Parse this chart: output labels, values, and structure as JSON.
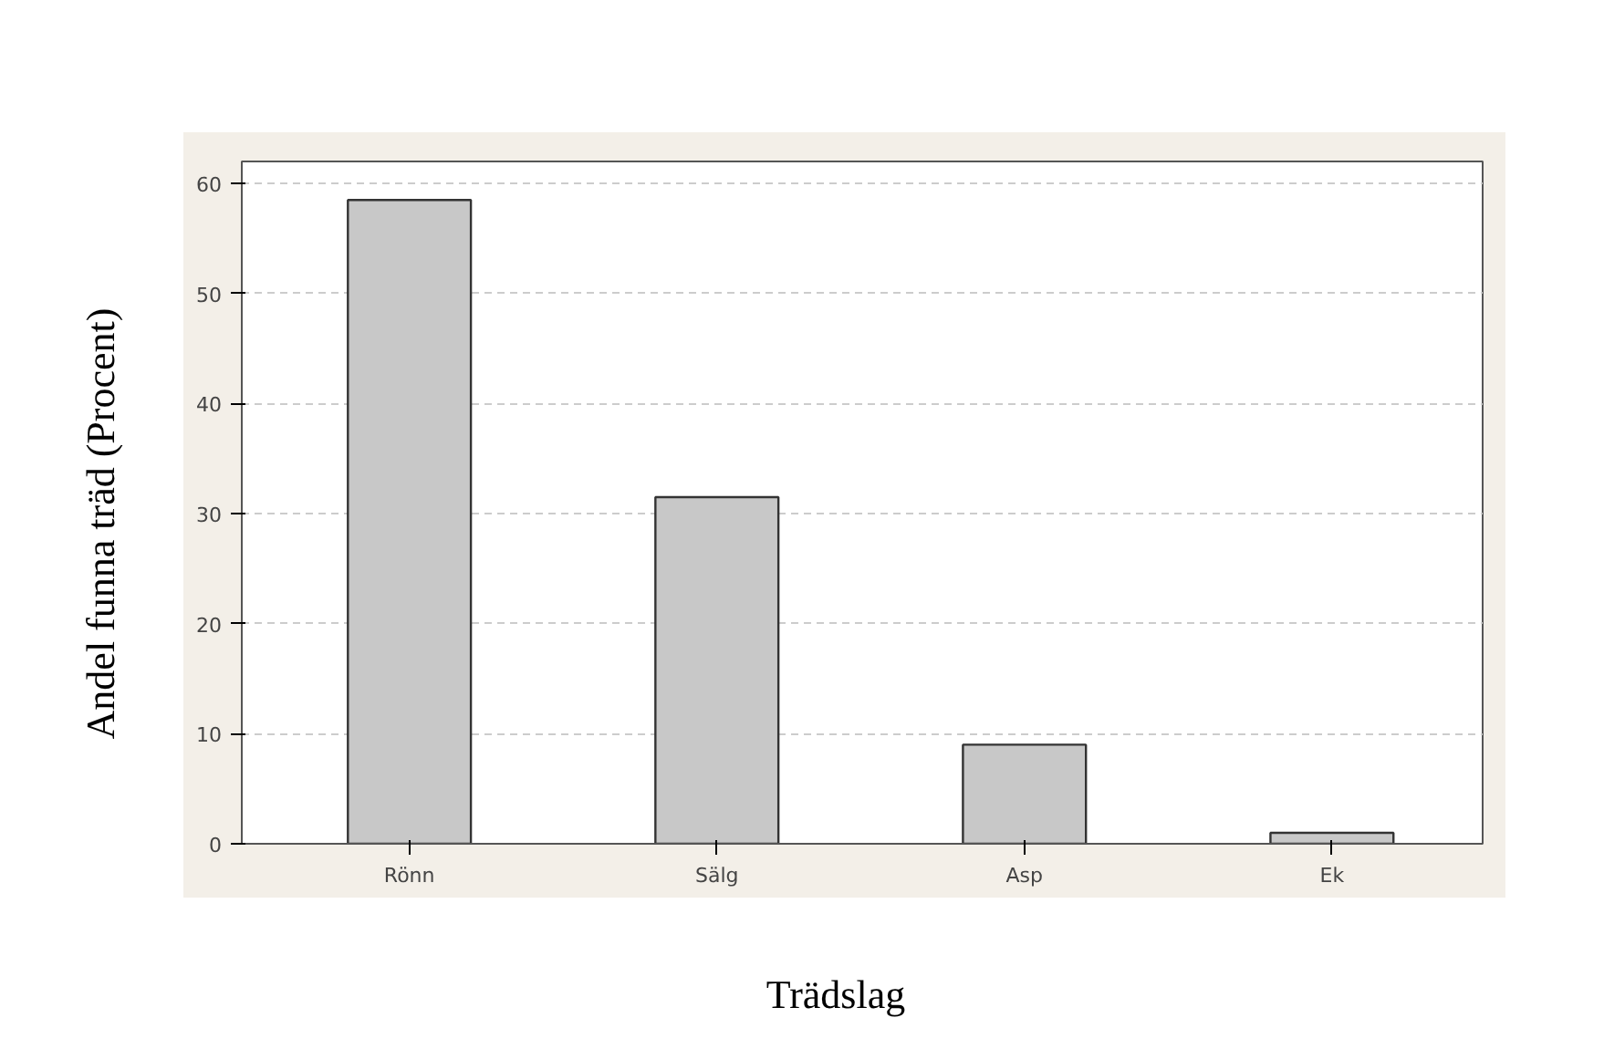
{
  "chart_data": {
    "type": "bar",
    "xlabel": "Trädslag",
    "ylabel": "Andel funna träd (Procent)",
    "categories": [
      "Rönn",
      "Sälg",
      "Asp",
      "Ek"
    ],
    "values": [
      58.5,
      31.5,
      9,
      1
    ],
    "color": "#c8c8c8",
    "ylim": [
      0,
      62
    ],
    "yticks": [
      0,
      10,
      20,
      30,
      40,
      50,
      60
    ],
    "grid": "y"
  }
}
